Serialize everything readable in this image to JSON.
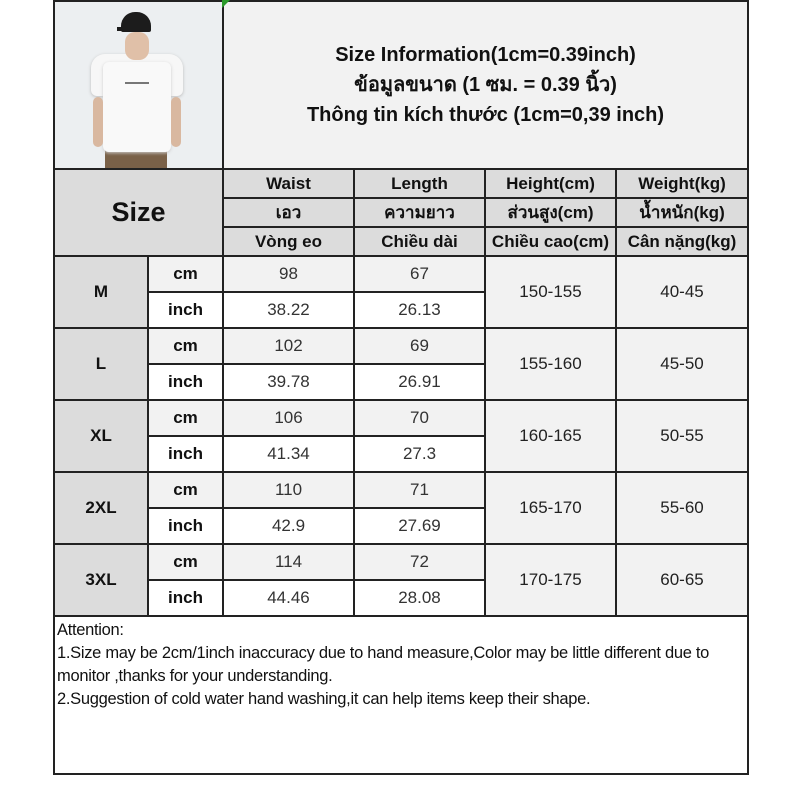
{
  "title": {
    "line1": "Size Information(1cm=0.39inch)",
    "line2": "ข้อมูลขนาด (1 ซม. = 0.39 นิ้ว)",
    "line3": "Thông tin kích thước (1cm=0,39 inch)"
  },
  "header": {
    "size_label": "Size",
    "columns": [
      {
        "en": "Waist",
        "th": "เอว",
        "vi": "Vòng eo"
      },
      {
        "en": "Length",
        "th": "ความยาว",
        "vi": "Chiều dài"
      },
      {
        "en": "Height(cm)",
        "th": "ส่วนสูง(cm)",
        "vi": "Chiều cao(cm)"
      },
      {
        "en": "Weight(kg)",
        "th": "น้ำหนัก(kg)",
        "vi": "Cân nặng(kg)"
      }
    ]
  },
  "units": {
    "cm": "cm",
    "inch": "inch"
  },
  "rows": [
    {
      "size": "M",
      "waist_cm": "98",
      "length_cm": "67",
      "waist_inch": "38.22",
      "length_inch": "26.13",
      "height": "150-155",
      "weight": "40-45"
    },
    {
      "size": "L",
      "waist_cm": "102",
      "length_cm": "69",
      "waist_inch": "39.78",
      "length_inch": "26.91",
      "height": "155-160",
      "weight": "45-50"
    },
    {
      "size": "XL",
      "waist_cm": "106",
      "length_cm": "70",
      "waist_inch": "41.34",
      "length_inch": "27.3",
      "height": "160-165",
      "weight": "50-55"
    },
    {
      "size": "2XL",
      "waist_cm": "110",
      "length_cm": "71",
      "waist_inch": "42.9",
      "length_inch": "27.69",
      "height": "165-170",
      "weight": "55-60"
    },
    {
      "size": "3XL",
      "waist_cm": "114",
      "length_cm": "72",
      "waist_inch": "44.46",
      "length_inch": "28.08",
      "height": "170-175",
      "weight": "60-65"
    }
  ],
  "attention": {
    "heading": "Attention:",
    "note1": "1.Size may be 2cm/1inch inaccuracy due to hand measure,Color may be little different due to monitor ,thanks for your understanding.",
    "note2": "2.Suggestion of cold water hand washing,it can help items keep their shape."
  },
  "colors": {
    "header_bg": "#dcdcdc",
    "cm_row_bg": "#f2f2f2",
    "inch_row_bg": "#ffffff",
    "border": "#222222"
  }
}
